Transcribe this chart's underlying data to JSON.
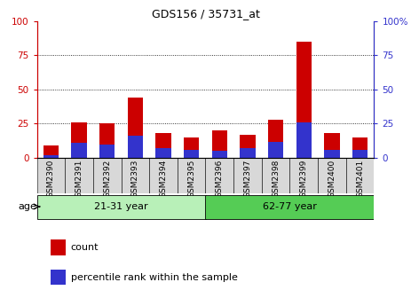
{
  "title": "GDS156 / 35731_at",
  "samples": [
    "GSM2390",
    "GSM2391",
    "GSM2392",
    "GSM2393",
    "GSM2394",
    "GSM2395",
    "GSM2396",
    "GSM2397",
    "GSM2398",
    "GSM2399",
    "GSM2400",
    "GSM2401"
  ],
  "count_values": [
    9,
    26,
    25,
    44,
    18,
    15,
    20,
    17,
    28,
    85,
    18,
    15
  ],
  "percentile_values": [
    2,
    11,
    10,
    16,
    7,
    6,
    5,
    7,
    12,
    26,
    6,
    6
  ],
  "groups": [
    {
      "label": "21-31 year",
      "start": 0,
      "end": 6
    },
    {
      "label": "62-77 year",
      "start": 6,
      "end": 12
    }
  ],
  "ylim": [
    0,
    100
  ],
  "yticks": [
    0,
    25,
    50,
    75,
    100
  ],
  "bar_color_count": "#CC0000",
  "bar_color_percentile": "#3333CC",
  "bar_width": 0.55,
  "legend_count": "count",
  "legend_percentile": "percentile rank within the sample",
  "age_label": "age",
  "tick_color_left": "#CC0000",
  "tick_color_right": "#3333CC",
  "group_colors": [
    "#b8f0b8",
    "#55cc55"
  ],
  "xtick_bg": "#d8d8d8"
}
